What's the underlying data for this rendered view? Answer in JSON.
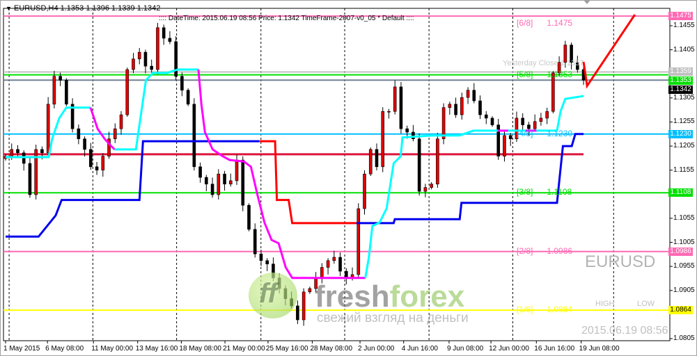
{
  "header": {
    "symbol_info": "EURUSD,H4  1.1353 1.1396 1.1339 1.1342",
    "menu_icon": "triangle-down-icon"
  },
  "info_bar": {
    "text": ":::: DateTime: 2015.06.19 08:56    Price: 1.1342    TimeFrame-2007-v0_05    *   Default  ::::"
  },
  "overlay": {
    "symbol": "EURUSD",
    "high_label": "HIGH",
    "low_label": "LOW",
    "datetime": "2015.06.19 08:56",
    "yesterday_close": "Yesterday Close 1.1357"
  },
  "watermark": {
    "brand": "freshforex",
    "brand_part1": "fresh",
    "brand_part2": "forex",
    "slogan": "свежий взгляд на деньги"
  },
  "colors": {
    "bull": "#e00000",
    "bear": "#000000",
    "pink": "#ff69b4",
    "green": "#00e000",
    "lightblue": "#00bfff",
    "crimson": "#dc143c",
    "yellow": "#ffff00",
    "blue": "#0000ee",
    "red": "#ff0000",
    "cyan": "#00ffff",
    "magenta": "#ff00ff"
  },
  "chart_data": {
    "type": "candlestick",
    "symbol": "EURUSD",
    "timeframe": "H4",
    "ylim": [
      1.079,
      1.149
    ],
    "y_ticks": [
      "1.1455",
      "1.1405",
      "1.1305",
      "1.1255",
      "1.1205",
      "1.1155",
      "1.1055",
      "1.1005",
      "1.0955",
      "1.0905",
      "1.0805"
    ],
    "y_tick_values": [
      1.1455,
      1.1405,
      1.1305,
      1.1255,
      1.1205,
      1.1155,
      1.1055,
      1.1005,
      1.0955,
      1.0905,
      1.0805
    ],
    "x_ticks": [
      {
        "label": "1 May 2015",
        "bar": 0
      },
      {
        "label": "6 May 08:00",
        "bar": 7.1
      },
      {
        "label": "11 May 00:00",
        "bar": 14.9
      },
      {
        "label": "13 May 16:00",
        "bar": 22.4
      },
      {
        "label": "18 May 08:00",
        "bar": 29.8
      },
      {
        "label": "21 May 00:00",
        "bar": 37.2
      },
      {
        "label": "25 May 16:00",
        "bar": 44.5
      },
      {
        "label": "28 May 08:00",
        "bar": 52
      },
      {
        "label": "2 Jun 00:00",
        "bar": 60.1
      },
      {
        "label": "4 Jun 16:00",
        "bar": 67.5
      },
      {
        "label": "9 Jun 08:00",
        "bar": 75.2
      },
      {
        "label": "12 Jun 00:00",
        "bar": 82.3
      },
      {
        "label": "16 Jun 16:00",
        "bar": 90
      },
      {
        "label": "19 Jun 08:00",
        "bar": 97.6
      }
    ],
    "grid_bars": [
      0.6,
      14.8,
      29,
      43.3,
      57.5,
      71.8,
      86,
      103.1
    ],
    "closes": [
      1.1184,
      1.1198,
      1.1191,
      1.1169,
      1.1104,
      1.1198,
      1.1191,
      1.1292,
      1.135,
      1.1342,
      1.1292,
      1.1241,
      1.122,
      1.1198,
      1.1162,
      1.1155,
      1.1184,
      1.122,
      1.1241,
      1.127,
      1.1364,
      1.1386,
      1.14,
      1.1371,
      1.1364,
      1.1451,
      1.1429,
      1.1422,
      1.135,
      1.1321,
      1.1292,
      1.1162,
      1.114,
      1.1126,
      1.1104,
      1.1147,
      1.1126,
      1.1133,
      1.1176,
      1.1082,
      1.1032,
      1.0981,
      1.0967,
      1.096,
      1.0931,
      1.0909,
      1.0888,
      1.0873,
      1.0844,
      1.0902,
      1.0909,
      1.0931,
      1.0953,
      1.0967,
      1.0974,
      1.0945,
      1.0931,
      1.0938,
      1.1075,
      1.1147,
      1.1198,
      1.1162,
      1.1277,
      1.1277,
      1.1328,
      1.1241,
      1.1234,
      1.122,
      1.1111,
      1.1119,
      1.1126,
      1.122,
      1.1285,
      1.1292,
      1.127,
      1.1306,
      1.1321,
      1.1299,
      1.127,
      1.1263,
      1.1249,
      1.1184,
      1.1227,
      1.122,
      1.1263,
      1.1249,
      1.1241,
      1.1256,
      1.1263,
      1.1277,
      1.1357,
      1.1379,
      1.1415,
      1.1379,
      1.1364,
      1.1342
    ],
    "levels": [
      {
        "tag": "[6/8]",
        "value": "1.1475",
        "price": 1.1475,
        "color": "#ff69b4",
        "axis_label": true,
        "text": true
      },
      {
        "tag": "",
        "value": "1.1359",
        "price": 1.1359,
        "color": "#c0c0c0",
        "axis_label": true,
        "text": false
      },
      {
        "tag": "[5/8]",
        "value": "1.1353",
        "price": 1.1353,
        "color": "#00e000",
        "axis_label": true,
        "text": true
      },
      {
        "tag": "",
        "value": "1.1342",
        "price": 1.1342,
        "color": "#708090",
        "axis_label": true,
        "text": false,
        "box_color": "#000000"
      },
      {
        "tag": "[4/8]",
        "value": "1.1230",
        "price": 1.123,
        "color": "#00bfff",
        "axis_label": true,
        "text": true
      },
      {
        "tag": "[3/8]",
        "value": "1.1108",
        "price": 1.1108,
        "color": "#00e000",
        "axis_label": true,
        "text": true
      },
      {
        "tag": "[2/8]",
        "value": "1.0986",
        "price": 1.0986,
        "color": "#ff69b4",
        "axis_label": true,
        "text": true
      },
      {
        "tag": "[1/8]",
        "value": "1.0864",
        "price": 1.0864,
        "color": "#ffff00",
        "axis_label": true,
        "text": true
      }
    ],
    "crimson_level": 1.1188,
    "step_line": [
      {
        "color": "#0000ee",
        "points": [
          [
            0,
            1.1017
          ],
          [
            5.6,
            1.1017
          ],
          [
            8.5,
            1.1061
          ],
          [
            9.5,
            1.1093
          ],
          [
            22.7,
            1.1093
          ],
          [
            23.3,
            1.1215
          ],
          [
            43,
            1.1215
          ]
        ]
      },
      {
        "color": "#ff0000",
        "points": [
          [
            43,
            1.1215
          ],
          [
            45.7,
            1.1215
          ],
          [
            46,
            1.1093
          ],
          [
            48,
            1.1093
          ],
          [
            48.6,
            1.1045
          ],
          [
            59.5,
            1.1045
          ]
        ]
      },
      {
        "color": "#0000ee",
        "points": [
          [
            59.5,
            1.1045
          ],
          [
            65.8,
            1.1045
          ],
          [
            66,
            1.1053
          ],
          [
            77,
            1.1053
          ],
          [
            77.3,
            1.1087
          ],
          [
            93.5,
            1.1087
          ],
          [
            94.5,
            1.1205
          ],
          [
            96,
            1.1205
          ],
          [
            96.6,
            1.123
          ],
          [
            98,
            1.123
          ]
        ]
      }
    ],
    "trail_line": [
      {
        "color": "#00ffff",
        "points": [
          [
            0,
            1.1182
          ],
          [
            7.3,
            1.1182
          ],
          [
            7.9,
            1.122
          ],
          [
            9.1,
            1.1263
          ],
          [
            10.3,
            1.1285
          ],
          [
            14.4,
            1.1285
          ]
        ]
      },
      {
        "color": "#ff00ff",
        "points": [
          [
            14.4,
            1.1285
          ],
          [
            15.6,
            1.1241
          ],
          [
            16.8,
            1.122
          ],
          [
            17.9,
            1.1205
          ],
          [
            18.5,
            1.1198
          ]
        ]
      },
      {
        "color": "#00ffff",
        "points": [
          [
            18.5,
            1.1198
          ],
          [
            22.1,
            1.1198
          ],
          [
            22.7,
            1.1249
          ],
          [
            23.8,
            1.1342
          ],
          [
            25,
            1.1357
          ],
          [
            27.4,
            1.1357
          ],
          [
            29.2,
            1.1364
          ],
          [
            32.7,
            1.1364
          ]
        ]
      },
      {
        "color": "#ff00ff",
        "points": [
          [
            32.7,
            1.1364
          ],
          [
            33.2,
            1.1292
          ],
          [
            33.8,
            1.1234
          ],
          [
            35.1,
            1.1198
          ],
          [
            36.8,
            1.1184
          ],
          [
            38,
            1.1176
          ],
          [
            40.4,
            1.1173
          ],
          [
            41.6,
            1.1162
          ],
          [
            42.7,
            1.1104
          ],
          [
            43.9,
            1.1046
          ],
          [
            45.1,
            1.101
          ],
          [
            46.3,
            1.1003
          ],
          [
            47.5,
            1.0953
          ],
          [
            48.6,
            1.0931
          ],
          [
            61,
            1.0931
          ]
        ]
      },
      {
        "color": "#00ffff",
        "points": [
          [
            61,
            1.0931
          ],
          [
            61.6,
            1.0974
          ],
          [
            62.2,
            1.1039
          ],
          [
            63.4,
            1.1046
          ],
          [
            64.6,
            1.1075
          ],
          [
            65.8,
            1.1169
          ],
          [
            67,
            1.1184
          ],
          [
            67.3,
            1.1223
          ],
          [
            72.3,
            1.1227
          ],
          [
            77,
            1.1227
          ],
          [
            79.3,
            1.1237
          ],
          [
            93.5,
            1.1237
          ],
          [
            94.1,
            1.1277
          ],
          [
            94.9,
            1.1303
          ],
          [
            98,
            1.1309
          ]
        ]
      },
      {
        "color": "#ff00ff",
        "points": [
          [
            83.5,
            1.1237
          ],
          [
            85.2,
            1.1237
          ]
        ]
      },
      {
        "color": "#ff00ff",
        "points": [
          [
            88.2,
            1.1237
          ],
          [
            90,
            1.1237
          ]
        ]
      }
    ],
    "arrow_line": {
      "color": "#ff0000",
      "points": [
        [
          98,
          1.138
        ],
        [
          98.6,
          1.133
        ],
        [
          106.7,
          1.1478
        ]
      ]
    }
  }
}
